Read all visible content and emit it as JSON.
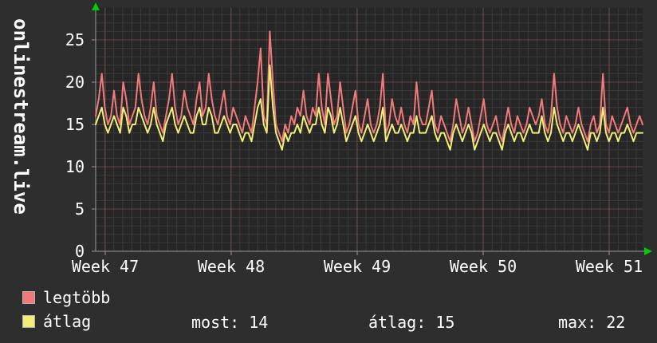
{
  "chart_data": {
    "type": "line",
    "vertical_title": "onlinestream.live",
    "x_tick_labels": [
      "Week 47",
      "Week 48",
      "Week 49",
      "Week 50",
      "Week 51"
    ],
    "y_ticks": [
      0,
      5,
      10,
      15,
      20,
      25
    ],
    "ylim": [
      0,
      28.8
    ],
    "grid": true,
    "legend_position": "bottom",
    "colors": {
      "page_bg": "#2e2e2e",
      "plot_bg": "#262626",
      "grid_minor": "#3a3a3a",
      "grid_major": "rgba(236,136,136,0.30)",
      "axis": "#9a9a9a",
      "arrow": "#00cc00",
      "text": "#ffffff"
    },
    "series": [
      {
        "name": "legtöbb",
        "color": "#f07a7a",
        "values": [
          16,
          18,
          21,
          17,
          15,
          16,
          19,
          16,
          15,
          20,
          18,
          15,
          16,
          17,
          21,
          18,
          16,
          15,
          17,
          20,
          16,
          15,
          14,
          16,
          18,
          21,
          17,
          15,
          16,
          19,
          17,
          16,
          15,
          18,
          20,
          16,
          17,
          21,
          18,
          16,
          15,
          17,
          19,
          16,
          15,
          17,
          16,
          15,
          14,
          16,
          15,
          14,
          17,
          20,
          24,
          16,
          15,
          26,
          20,
          15,
          14,
          13,
          15,
          14,
          16,
          15,
          17,
          16,
          19,
          16,
          15,
          17,
          16,
          21,
          17,
          15,
          21,
          18,
          15,
          16,
          20,
          17,
          14,
          15,
          17,
          19,
          15,
          14,
          16,
          18,
          15,
          14,
          15,
          17,
          21,
          14,
          15,
          18,
          16,
          15,
          17,
          15,
          14,
          16,
          15,
          20,
          16,
          15,
          15,
          17,
          19,
          15,
          14,
          16,
          15,
          14,
          13,
          15,
          18,
          16,
          14,
          15,
          17,
          15,
          13,
          14,
          16,
          18,
          15,
          14,
          15,
          16,
          14,
          13,
          15,
          17,
          15,
          14,
          16,
          15,
          14,
          15,
          17,
          16,
          15,
          16,
          18,
          15,
          14,
          16,
          21,
          17,
          15,
          14,
          16,
          15,
          14,
          15,
          17,
          15,
          14,
          13,
          15,
          16,
          14,
          15,
          21,
          15,
          14,
          16,
          15,
          14,
          15,
          16,
          17,
          15,
          14,
          15,
          16,
          15
        ]
      },
      {
        "name": "átlag",
        "color": "#efef78",
        "values": [
          15,
          16,
          17,
          15,
          14,
          15,
          16,
          15,
          14,
          17,
          16,
          14,
          15,
          15,
          17,
          16,
          15,
          14,
          15,
          17,
          15,
          14,
          13,
          15,
          16,
          17,
          15,
          14,
          15,
          16,
          15,
          14,
          14,
          16,
          17,
          15,
          15,
          17,
          16,
          14,
          14,
          15,
          16,
          15,
          14,
          15,
          15,
          14,
          13,
          14,
          14,
          13,
          15,
          17,
          18,
          15,
          14,
          22,
          17,
          14,
          13,
          12,
          14,
          13,
          14,
          14,
          15,
          14,
          16,
          15,
          14,
          15,
          15,
          17,
          15,
          14,
          17,
          16,
          14,
          15,
          17,
          15,
          13,
          14,
          15,
          16,
          14,
          13,
          14,
          15,
          14,
          13,
          14,
          15,
          17,
          13,
          14,
          15,
          14,
          14,
          15,
          14,
          13,
          14,
          14,
          16,
          14,
          14,
          14,
          15,
          16,
          14,
          13,
          14,
          14,
          13,
          12,
          14,
          15,
          14,
          13,
          14,
          15,
          14,
          12,
          13,
          14,
          15,
          14,
          13,
          14,
          14,
          13,
          12,
          14,
          15,
          14,
          13,
          14,
          14,
          13,
          14,
          15,
          14,
          14,
          14,
          16,
          14,
          13,
          14,
          17,
          15,
          14,
          13,
          14,
          14,
          13,
          14,
          15,
          14,
          13,
          12,
          14,
          14,
          13,
          14,
          17,
          14,
          13,
          14,
          14,
          13,
          14,
          14,
          15,
          14,
          13,
          14,
          14,
          14
        ]
      }
    ],
    "stats": {
      "most": 14,
      "atlag": 15,
      "max": 22
    }
  },
  "legend": {
    "stats": [
      "most: 14",
      "átlag: 15",
      "max: 22"
    ]
  }
}
